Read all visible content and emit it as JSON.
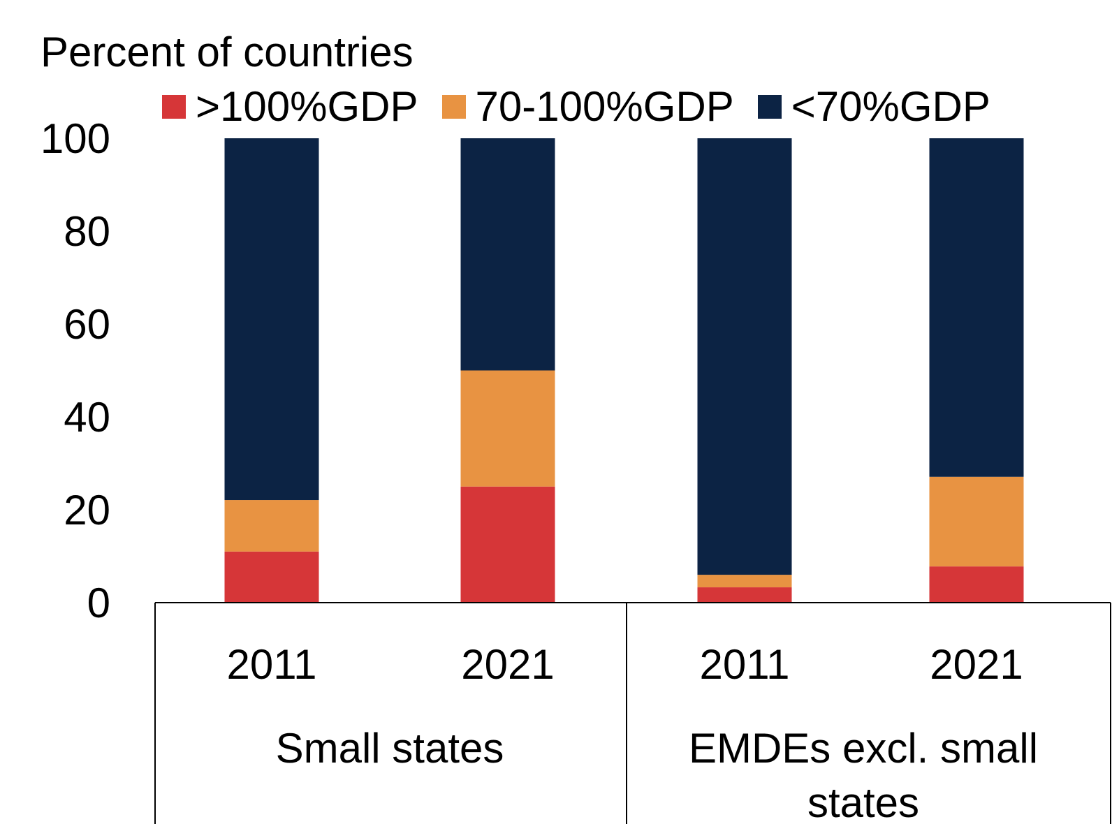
{
  "chart_data": {
    "type": "bar",
    "stacked": true,
    "title": "",
    "ylabel": "Percent of countries",
    "xlabel": "",
    "ylim": [
      0,
      100
    ],
    "yticks": [
      0,
      20,
      40,
      60,
      80,
      100
    ],
    "grid": false,
    "legend_position": "top",
    "groups": [
      {
        "label": "Small states",
        "categories": [
          "2011",
          "2021"
        ]
      },
      {
        "label": "EMDEs excl. small states",
        "categories": [
          "2011",
          "2021"
        ]
      }
    ],
    "categories": [
      "2011",
      "2021",
      "2011",
      "2021"
    ],
    "series": [
      {
        "name": ">100%GDP",
        "color": "#D63638",
        "values": [
          11.0,
          25.0,
          3.3,
          7.8
        ]
      },
      {
        "name": "70-100%GDP",
        "color": "#E89342",
        "values": [
          11.1,
          25.0,
          2.7,
          19.3
        ]
      },
      {
        "name": "<70%GDP",
        "color": "#0C2344",
        "values": [
          77.9,
          50.0,
          94.0,
          72.9
        ]
      }
    ]
  }
}
